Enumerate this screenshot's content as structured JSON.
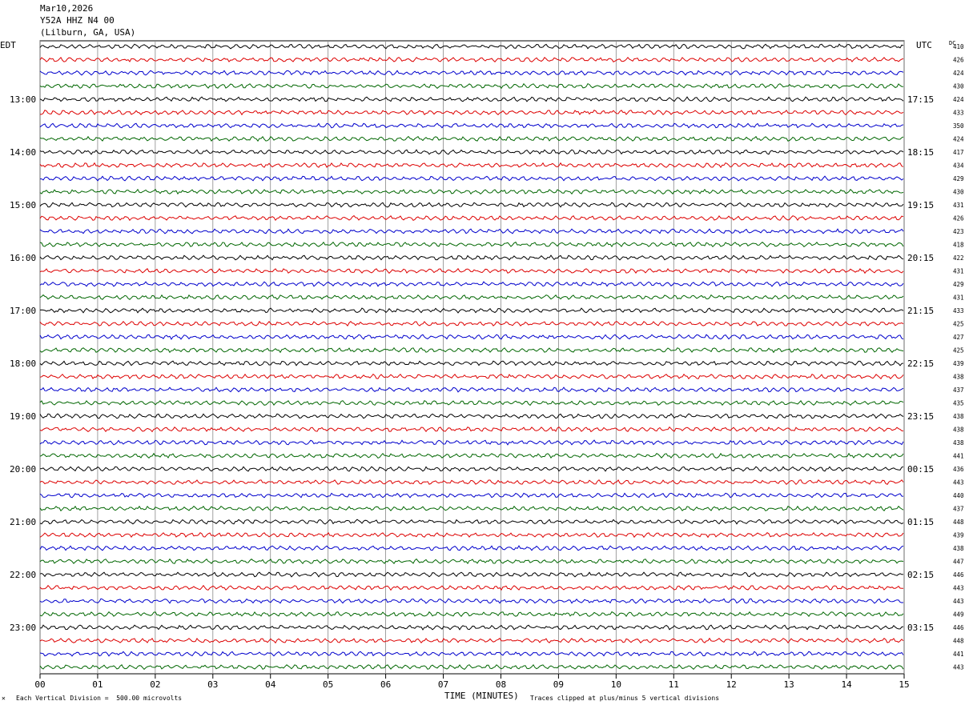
{
  "header": {
    "date": "Mar10,2026",
    "station": "Y52A HHZ N4 00",
    "location": "(Lilburn, GA, USA)"
  },
  "left_timezone": "EDT",
  "right_timezone": "UTC",
  "dc_label": "DC",
  "footer": {
    "scale_note": "Each Vertical Division =  500.00 microvolts",
    "clip_note": "Traces clipped at plus/minus 5 vertical divisions",
    "x_title": "TIME (MINUTES)"
  },
  "colors": {
    "trace_cycle": [
      "#000000",
      "#dd0000",
      "#0000cc",
      "#006600"
    ],
    "grid": "#888888"
  },
  "chart_data": {
    "type": "line",
    "title": "",
    "xlabel": "TIME (MINUTES)",
    "x_ticks": [
      "00",
      "01",
      "02",
      "03",
      "04",
      "05",
      "06",
      "07",
      "08",
      "09",
      "10",
      "11",
      "12",
      "13",
      "14",
      "15"
    ],
    "xlim": [
      0,
      15
    ],
    "left_hour_labels": [
      "13:00",
      "14:00",
      "15:00",
      "16:00",
      "17:00",
      "18:00",
      "19:00",
      "20:00",
      "21:00",
      "22:00",
      "23:00"
    ],
    "right_hour_labels": [
      "17:15",
      "18:15",
      "19:15",
      "20:15",
      "21:15",
      "22:15",
      "23:15",
      "00:15",
      "01:15",
      "02:15",
      "03:15"
    ],
    "hour_label_row_offset": 4,
    "rows_per_hour": 4,
    "dc_values": [
      410,
      426,
      424,
      430,
      424,
      433,
      350,
      424,
      417,
      434,
      429,
      430,
      431,
      426,
      423,
      418,
      422,
      431,
      429,
      431,
      433,
      425,
      427,
      425,
      439,
      438,
      437,
      435,
      438,
      438,
      438,
      441,
      436,
      443,
      440,
      437,
      448,
      439,
      438,
      447,
      446,
      443,
      443,
      449,
      446,
      448,
      441,
      443
    ]
  }
}
